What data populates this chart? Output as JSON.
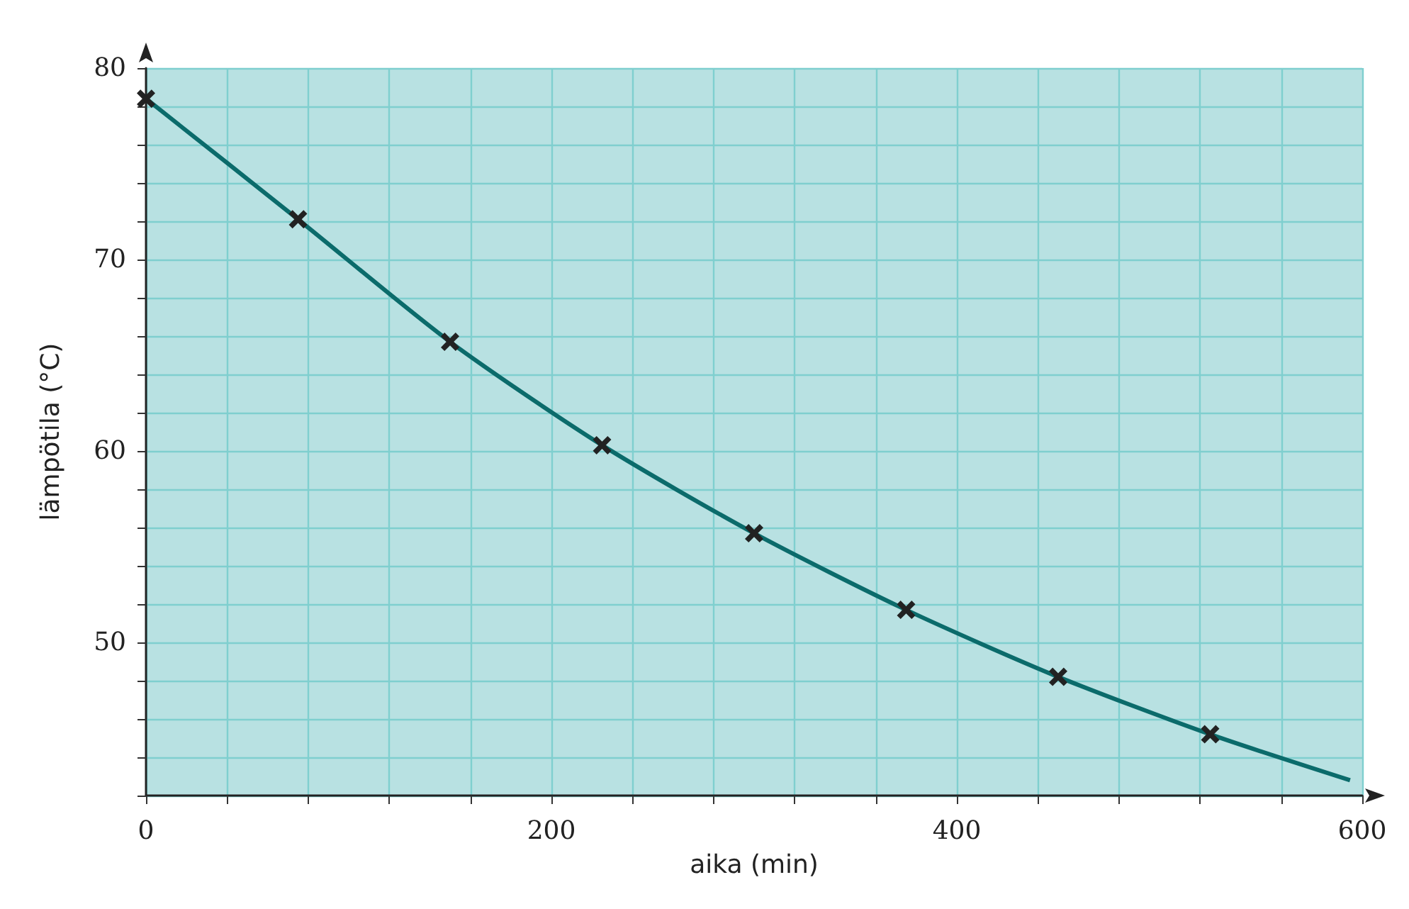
{
  "chart_data": {
    "type": "line",
    "xlabel": "aika (min)",
    "ylabel": "lämpötila (°C)",
    "xlim": [
      0,
      600
    ],
    "ylim": [
      42,
      80
    ],
    "xticks": [
      0,
      {
        "value": 40,
        "label": null
      },
      {
        "value": 80,
        "label": null
      },
      {
        "value": 120,
        "label": null
      },
      {
        "value": 160,
        "label": null
      },
      200,
      {
        "value": 240,
        "label": null
      },
      {
        "value": 280,
        "label": null
      },
      {
        "value": 320,
        "label": null
      },
      {
        "value": 360,
        "label": null
      },
      400,
      {
        "value": 440,
        "label": null
      },
      {
        "value": 480,
        "label": null
      },
      {
        "value": 520,
        "label": null
      },
      {
        "value": 560,
        "label": null
      },
      600
    ],
    "yticks": [
      {
        "value": 42,
        "label": null
      },
      {
        "value": 44,
        "label": null
      },
      {
        "value": 46,
        "label": null
      },
      {
        "value": 48,
        "label": null
      },
      50,
      {
        "value": 52,
        "label": null
      },
      {
        "value": 54,
        "label": null
      },
      {
        "value": 56,
        "label": null
      },
      {
        "value": 58,
        "label": null
      },
      60,
      {
        "value": 62,
        "label": null
      },
      {
        "value": 64,
        "label": null
      },
      {
        "value": 66,
        "label": null
      },
      {
        "value": 68,
        "label": null
      },
      70,
      {
        "value": 72,
        "label": null
      },
      {
        "value": 74,
        "label": null
      },
      {
        "value": 76,
        "label": null
      },
      {
        "value": 78,
        "label": null
      },
      80
    ],
    "grid": true,
    "series": [
      {
        "color": "#0b6b6b",
        "marker": "none",
        "x": [
          0,
          75,
          150,
          225,
          300,
          375,
          450,
          525,
          594
        ],
        "values": [
          78.4,
          72.1,
          65.7,
          60.3,
          55.7,
          51.7,
          48.2,
          45.2,
          42.8
        ]
      },
      {
        "type": "scatter",
        "color": "#222222",
        "marker": "cross",
        "x": [
          0,
          75,
          150,
          225,
          300,
          375,
          450,
          525
        ],
        "values": [
          78.4,
          72.1,
          65.7,
          60.3,
          55.7,
          51.7,
          48.2,
          45.2
        ]
      }
    ]
  }
}
